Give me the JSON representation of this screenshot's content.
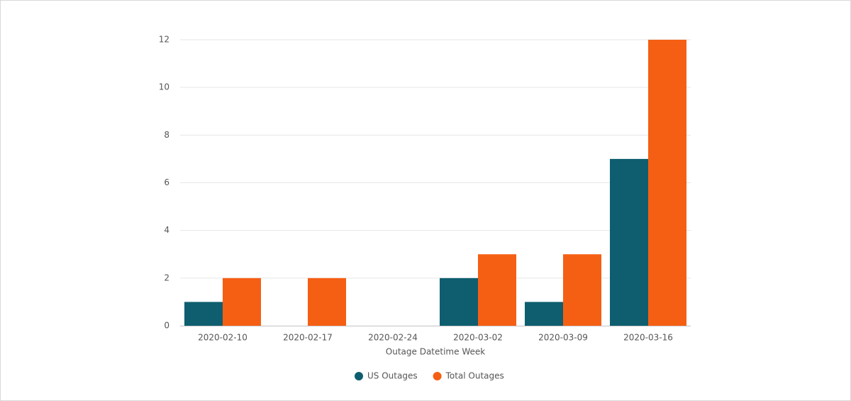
{
  "chart_data": {
    "type": "bar",
    "x_label": "Outage Datetime Week",
    "categories": [
      "2020-02-10",
      "2020-02-17",
      "2020-02-24",
      "2020-03-02",
      "2020-03-09",
      "2020-03-16"
    ],
    "series": [
      {
        "name": "US Outages",
        "color": "#0e5e6f",
        "values": [
          1,
          0,
          0,
          2,
          1,
          7
        ]
      },
      {
        "name": "Total Outages",
        "color": "#f55f14",
        "values": [
          2,
          2,
          0,
          3,
          3,
          12
        ]
      }
    ],
    "ylim": [
      0,
      12
    ],
    "yticks": [
      0,
      2,
      4,
      6,
      8,
      10,
      12
    ],
    "grid": true,
    "legend": "bottom"
  }
}
